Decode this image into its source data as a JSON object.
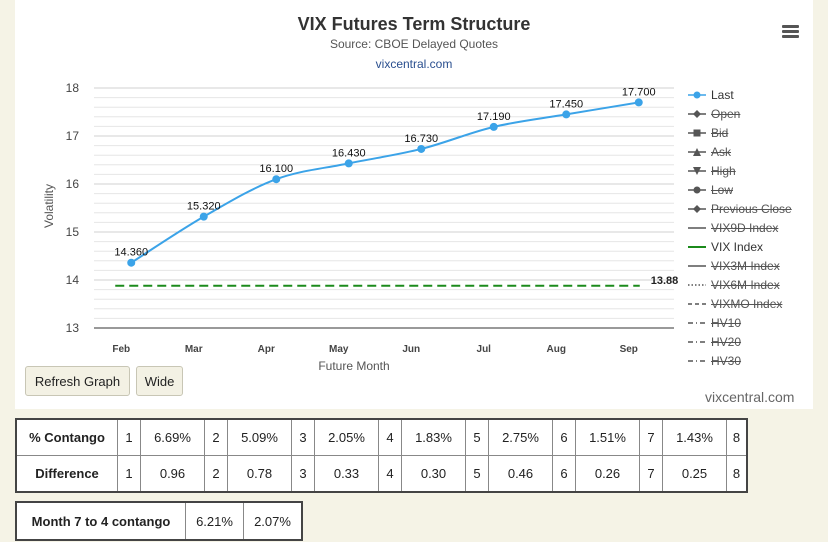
{
  "header": {
    "title": "VIX Futures Term Structure",
    "subtitle": "Source: CBOE Delayed Quotes",
    "site": "vixcentral.com"
  },
  "buttons": {
    "refresh": "Refresh Graph",
    "wide": "Wide"
  },
  "watermark": "vixcentral.com",
  "colors": {
    "last": "#3ba3e8",
    "vix_index": "#1b8a1b",
    "background": "#f5f3e6"
  },
  "legend": [
    {
      "label": "Last",
      "active": true,
      "marker": "circle-line",
      "color": "#3ba3e8"
    },
    {
      "label": "Open",
      "active": false,
      "marker": "diamond-line",
      "color": "#555555"
    },
    {
      "label": "Bid",
      "active": false,
      "marker": "square-line",
      "color": "#555555"
    },
    {
      "label": "Ask",
      "active": false,
      "marker": "triangle-line",
      "color": "#555555"
    },
    {
      "label": "High",
      "active": false,
      "marker": "triangle-down-line",
      "color": "#555555"
    },
    {
      "label": "Low",
      "active": false,
      "marker": "circle-line",
      "color": "#555555"
    },
    {
      "label": "Previous Close",
      "active": false,
      "marker": "diamond-line",
      "color": "#555555"
    },
    {
      "label": "VIX9D Index",
      "active": false,
      "marker": "solid-line",
      "color": "#555555"
    },
    {
      "label": "VIX Index",
      "active": true,
      "marker": "solid-line",
      "color": "#1b8a1b"
    },
    {
      "label": "VIX3M Index",
      "active": false,
      "marker": "solid-line",
      "color": "#555555"
    },
    {
      "label": "VIX6M Index",
      "active": false,
      "marker": "dotted-line",
      "color": "#555555"
    },
    {
      "label": "VIXMO Index",
      "active": false,
      "marker": "dashed-line",
      "color": "#555555"
    },
    {
      "label": "HV10",
      "active": false,
      "marker": "dashdot-line",
      "color": "#555555"
    },
    {
      "label": "HV20",
      "active": false,
      "marker": "dashdot-line",
      "color": "#555555"
    },
    {
      "label": "HV30",
      "active": false,
      "marker": "dashdot-line",
      "color": "#555555"
    }
  ],
  "chart_data": {
    "type": "line",
    "title": "VIX Futures Term Structure",
    "subtitle": "Source: CBOE Delayed Quotes",
    "categories": [
      "Feb",
      "Mar",
      "Apr",
      "May",
      "Jun",
      "Jul",
      "Aug",
      "Sep"
    ],
    "series": [
      {
        "name": "Last",
        "values": [
          14.36,
          15.32,
          16.1,
          16.43,
          16.73,
          17.19,
          17.45,
          17.7
        ],
        "labels": [
          "14.360",
          "15.320",
          "16.100",
          "16.430",
          "16.730",
          "17.190",
          "17.450",
          "17.700"
        ],
        "style": "smooth-line-markers"
      },
      {
        "name": "VIX Index",
        "values": [
          13.88,
          13.88,
          13.88,
          13.88,
          13.88,
          13.88,
          13.88,
          13.88
        ],
        "end_label": "13.88",
        "style": "dashed"
      }
    ],
    "xlabel": "Future Month",
    "ylabel": "Volatility",
    "ylim": [
      13,
      18
    ],
    "yticks": [
      13,
      14,
      15,
      16,
      17,
      18
    ],
    "ytick_labels": [
      "13",
      "14",
      "15",
      "16",
      "17",
      "18"
    ],
    "minor_grid_step": 0.2,
    "grid": true,
    "legend_position": "right"
  },
  "contango_table": {
    "rows": [
      {
        "header": "% Contango",
        "cells": [
          "1",
          "6.69%",
          "2",
          "5.09%",
          "3",
          "2.05%",
          "4",
          "1.83%",
          "5",
          "2.75%",
          "6",
          "1.51%",
          "7",
          "1.43%",
          "8"
        ]
      },
      {
        "header": "Difference",
        "cells": [
          "1",
          "0.96",
          "2",
          "0.78",
          "3",
          "0.33",
          "4",
          "0.30",
          "5",
          "0.46",
          "6",
          "0.26",
          "7",
          "0.25",
          "8"
        ]
      }
    ]
  },
  "month_table": {
    "header": "Month 7 to 4 contango",
    "values": [
      "6.21%",
      "2.07%"
    ]
  }
}
